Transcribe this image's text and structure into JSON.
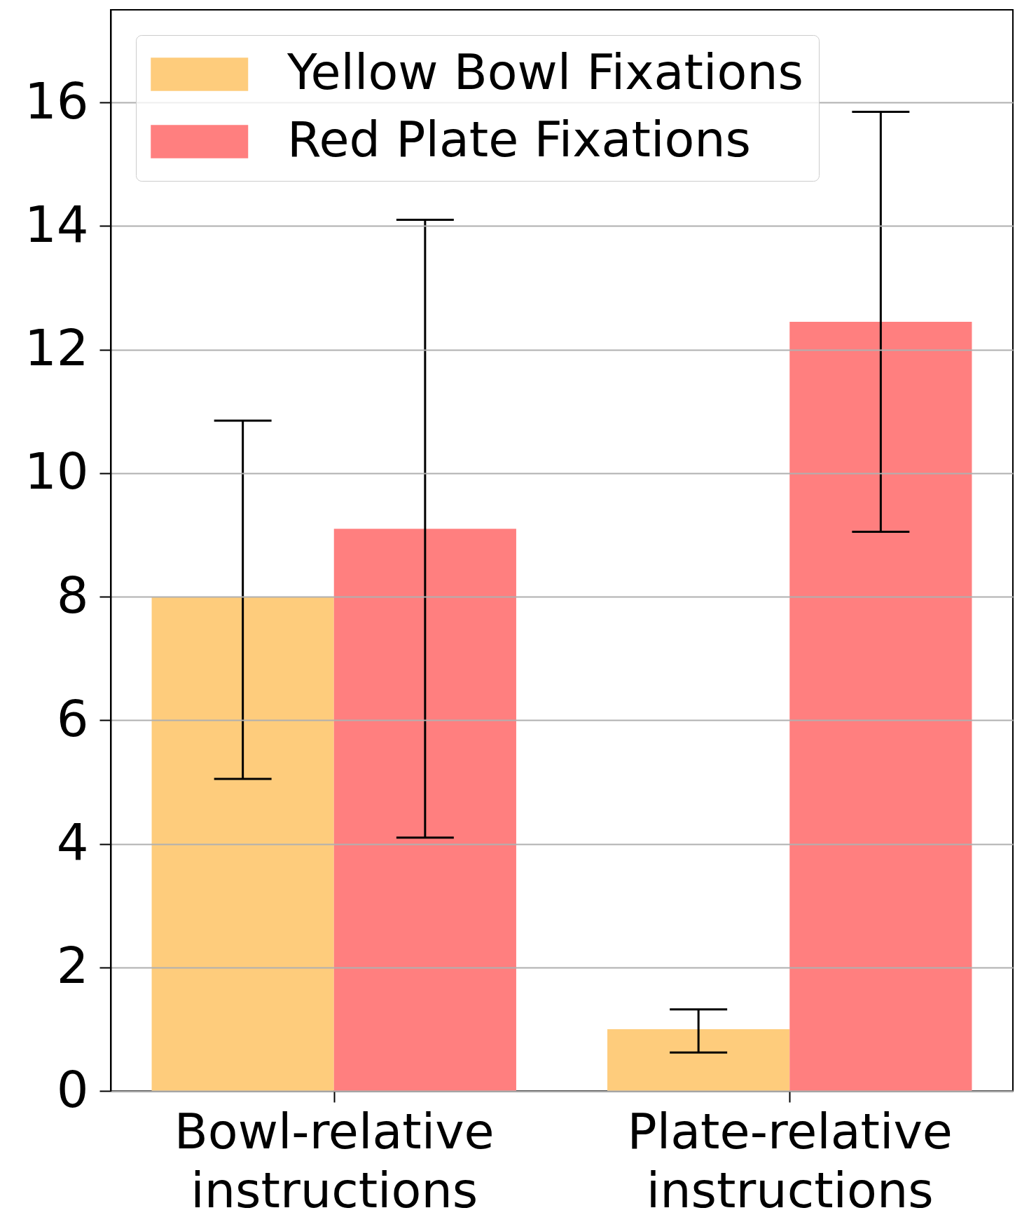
{
  "chart_data": {
    "type": "bar",
    "categories": [
      "Bowl-relative instructions",
      "Plate-relative instructions"
    ],
    "series": [
      {
        "name": "Yellow Bowl Fixations",
        "color": "#fecc7c",
        "values": [
          8.0,
          1.0
        ],
        "errors": [
          [
            5.05,
            10.85
          ],
          [
            0.62,
            1.32
          ]
        ]
      },
      {
        "name": "Red Plate Fixations",
        "color": "#ff7f7f",
        "values": [
          9.1,
          12.45
        ],
        "errors": [
          [
            4.1,
            14.1
          ],
          [
            9.05,
            15.85
          ]
        ]
      }
    ],
    "ylim": [
      0,
      17.5
    ],
    "yticks": [
      0,
      2,
      4,
      6,
      8,
      10,
      12,
      14,
      16
    ],
    "grid": "y",
    "legend": "top left"
  }
}
